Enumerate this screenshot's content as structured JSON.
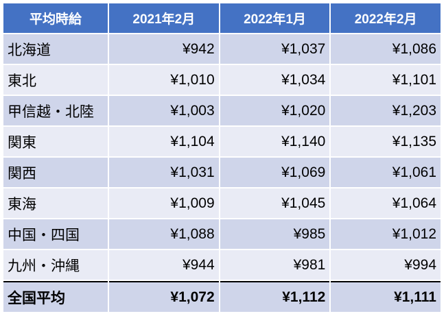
{
  "table": {
    "header": [
      "平均時給",
      "2021年2月",
      "2022年1月",
      "2022年2月"
    ],
    "rows": [
      [
        "北海道",
        "¥942",
        "¥1,037",
        "¥1,086"
      ],
      [
        "東北",
        "¥1,010",
        "¥1,034",
        "¥1,101"
      ],
      [
        "甲信越・北陸",
        "¥1,003",
        "¥1,020",
        "¥1,203"
      ],
      [
        "関東",
        "¥1,104",
        "¥1,140",
        "¥1,135"
      ],
      [
        "関西",
        "¥1,031",
        "¥1,069",
        "¥1,061"
      ],
      [
        "東海",
        "¥1,009",
        "¥1,045",
        "¥1,064"
      ],
      [
        "中国・四国",
        "¥1,088",
        "¥985",
        "¥1,012"
      ],
      [
        "九州・沖縄",
        "¥944",
        "¥981",
        "¥994"
      ]
    ],
    "total": [
      "全国平均",
      "¥1,072",
      "¥1,112",
      "¥1,111"
    ]
  }
}
